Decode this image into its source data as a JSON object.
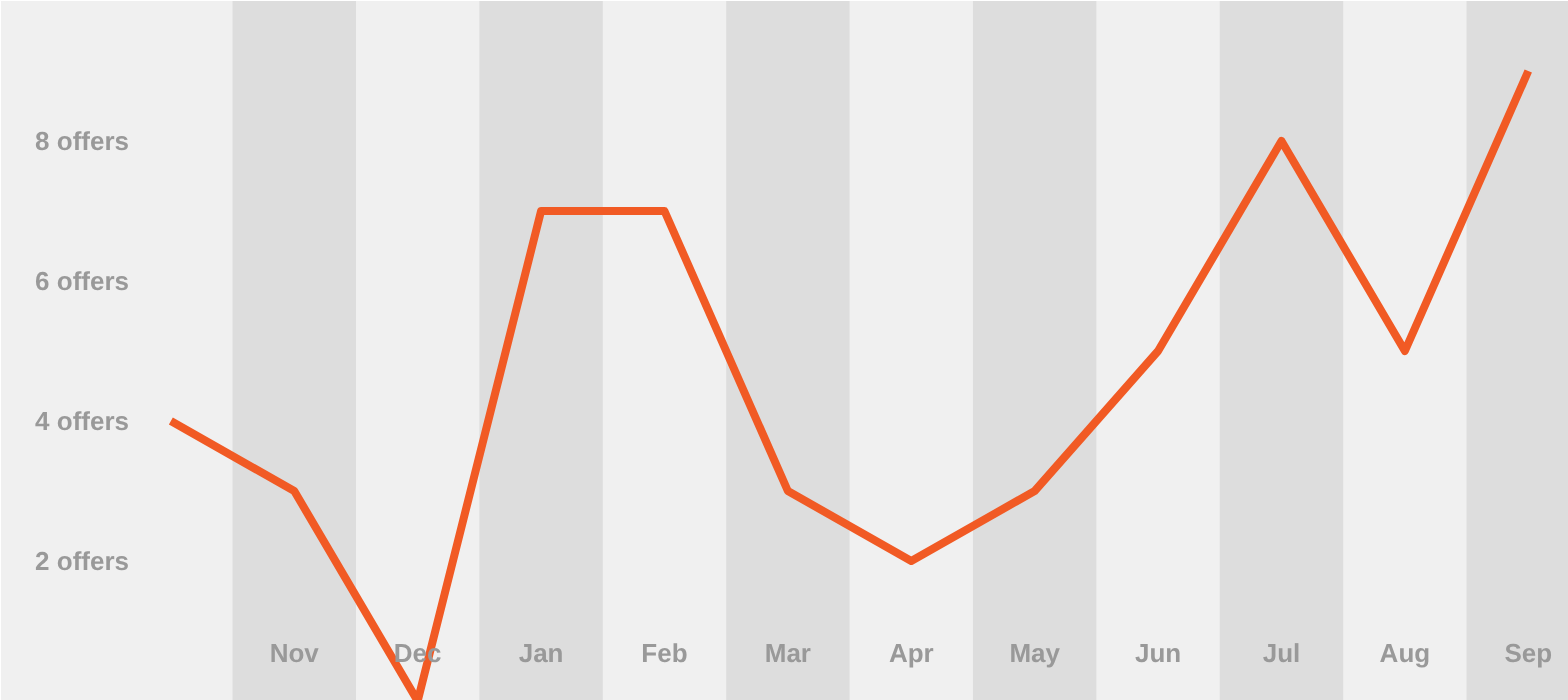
{
  "chart_data": {
    "type": "line",
    "categories": [
      null,
      "Nov",
      "Dec",
      "Jan",
      "Feb",
      "Mar",
      "Apr",
      "May",
      "Jun",
      "Jul",
      "Aug",
      "Sep"
    ],
    "series": [
      {
        "color": "#f15a24",
        "values": [
          4,
          3,
          0,
          7,
          7,
          3,
          2,
          3,
          5,
          8,
          5,
          9
        ]
      }
    ],
    "ylim": [
      0,
      10
    ],
    "yticks": [
      {
        "value": 2,
        "label": "2 offers"
      },
      {
        "value": 4,
        "label": "4 offers"
      },
      {
        "value": 6,
        "label": "6 offers"
      },
      {
        "value": 8,
        "label": "8 offers"
      }
    ],
    "bands": [
      {
        "axis": "x",
        "from": "Nov",
        "to": "Nov",
        "color": "#dddddd"
      },
      {
        "axis": "x",
        "from": "Jan",
        "to": "Jan",
        "color": "#dddddd"
      },
      {
        "axis": "x",
        "from": "Mar",
        "to": "Mar",
        "color": "#dddddd"
      },
      {
        "axis": "x",
        "from": "May",
        "to": "May",
        "color": "#dddddd"
      },
      {
        "axis": "x",
        "from": "Jul",
        "to": "Jul",
        "color": "#dddddd"
      },
      {
        "axis": "x",
        "from": "Sep",
        "to": "Sep",
        "color": "#dddddd"
      }
    ],
    "grid": false,
    "marker": "none",
    "line_style": "solid"
  }
}
